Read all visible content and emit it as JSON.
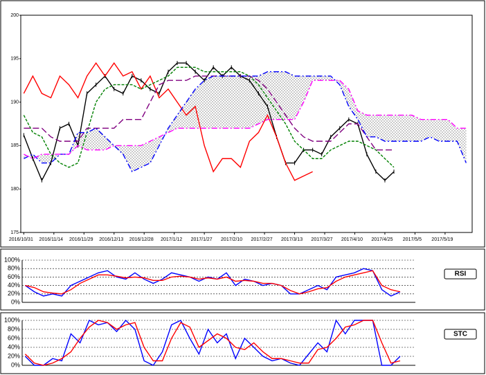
{
  "chart_data": [
    {
      "type": "line",
      "x": [
        0,
        3,
        6,
        9,
        12,
        15,
        18,
        21,
        24,
        27,
        30,
        33,
        36,
        39,
        42,
        45,
        48,
        51,
        54,
        57,
        60,
        63,
        66,
        69,
        72,
        75,
        78,
        81,
        84,
        87,
        90,
        93,
        96,
        99,
        102,
        105,
        108,
        111,
        114,
        117,
        120,
        123,
        126,
        129,
        132,
        135,
        138,
        141,
        144,
        147
      ],
      "xlim": [
        -1,
        149
      ],
      "xticks": [
        {
          "value": 0,
          "label": "2016/10/31"
        },
        {
          "value": 10,
          "label": "2016/11/14"
        },
        {
          "value": 20,
          "label": "2016/11/29"
        },
        {
          "value": 30,
          "label": "2016/12/13"
        },
        {
          "value": 40,
          "label": "2016/12/28"
        },
        {
          "value": 50,
          "label": "2017/1/12"
        },
        {
          "value": 60,
          "label": "2017/1/27"
        },
        {
          "value": 70,
          "label": "2017/2/10"
        },
        {
          "value": 80,
          "label": "2017/2/27"
        },
        {
          "value": 90,
          "label": "2017/3/13"
        },
        {
          "value": 100,
          "label": "2017/3/27"
        },
        {
          "value": 110,
          "label": "2017/4/10"
        },
        {
          "value": 120,
          "label": "2017/4/25"
        },
        {
          "value": 130,
          "label": "2017/5/5"
        },
        {
          "value": 140,
          "label": "2017/5/19"
        }
      ],
      "ylim": [
        175,
        200
      ],
      "yticks": [
        175,
        180,
        185,
        190,
        195,
        200
      ],
      "cloud": [
        4,
        5
      ],
      "series": [
        {
          "color": "#000000",
          "marker": "tick",
          "values": [
            186.2,
            183.5,
            181,
            183,
            187,
            187.5,
            185,
            191,
            192,
            193,
            191.5,
            191,
            193,
            192.5,
            191.5,
            191,
            193.5,
            194.5,
            194.5,
            193.5,
            192.5,
            194,
            193,
            194,
            193,
            192.5,
            191,
            189.5,
            186,
            183,
            183,
            184.5,
            184.5,
            184,
            186,
            187,
            188,
            187.5,
            184,
            182,
            181,
            182,
            null,
            null,
            null,
            null,
            null,
            null,
            null,
            null
          ]
        },
        {
          "color": "#ff0000",
          "values": [
            191,
            193,
            191,
            190.5,
            193,
            192,
            190.5,
            193,
            194.5,
            193,
            194.5,
            193,
            193.5,
            191.5,
            193,
            190.5,
            191.5,
            190,
            188.5,
            189.5,
            185,
            182,
            183.5,
            183.5,
            182.5,
            185.5,
            186.5,
            188.5,
            186,
            183,
            181,
            181.5,
            182,
            null,
            null,
            null,
            null,
            null,
            null,
            null,
            null,
            null,
            null,
            null,
            null,
            null,
            null,
            null,
            null,
            null
          ]
        },
        {
          "color": "#008000",
          "dash": "4,2",
          "values": [
            188.5,
            186.5,
            186,
            184,
            183,
            182.5,
            183,
            186.5,
            190,
            191.5,
            192,
            192,
            192,
            191.5,
            192,
            192.5,
            193,
            194,
            194,
            194,
            193.5,
            193.5,
            193.5,
            193.5,
            193.5,
            193,
            192,
            190.5,
            189,
            187.5,
            185.5,
            184.5,
            183.5,
            183.5,
            184.5,
            185,
            185.5,
            185.5,
            185,
            184.5,
            183.5,
            182.5,
            null,
            null,
            null,
            null,
            null,
            null,
            null,
            null
          ]
        },
        {
          "color": "#800080",
          "dash": "9,4",
          "values": [
            187,
            187,
            187,
            186,
            185.5,
            185.5,
            185.5,
            187,
            187,
            187,
            187,
            188,
            188,
            188,
            190,
            192,
            192.5,
            192.5,
            192.5,
            193,
            193,
            193,
            193,
            193,
            193,
            193,
            192.5,
            191.5,
            190,
            188.5,
            187,
            186,
            185.5,
            185.5,
            185.5,
            186.5,
            187.5,
            187.5,
            186,
            184.5,
            184.5,
            184.5,
            null,
            null,
            null,
            null,
            null,
            null,
            null,
            null
          ]
        },
        {
          "color": "#0000ff",
          "dash": "8,3,2,3",
          "values": [
            183.5,
            184,
            183,
            183,
            184,
            184,
            186.5,
            186.5,
            187,
            186,
            185,
            184,
            182,
            182.5,
            183,
            185,
            187,
            188.5,
            190,
            191.5,
            192.5,
            193,
            193,
            193,
            193,
            193,
            193,
            193.5,
            193.5,
            193.5,
            193,
            193,
            193,
            193,
            193,
            192,
            189.5,
            188,
            186,
            186,
            185.5,
            185.5,
            185.5,
            185.5,
            185.5,
            186,
            185.5,
            185.5,
            185.5,
            183
          ]
        },
        {
          "color": "#ff00ff",
          "dash": "8,3,2,3",
          "values": [
            184,
            183.5,
            184,
            184,
            184,
            184,
            185,
            184.5,
            184.5,
            184.5,
            185,
            185,
            185,
            185,
            185.5,
            186,
            186.5,
            187,
            187,
            187,
            187,
            187,
            187,
            187,
            187,
            187,
            187.5,
            188,
            188,
            188,
            188,
            190,
            192.5,
            192.5,
            192.5,
            192.5,
            191.5,
            189,
            188.5,
            188.5,
            188.5,
            188.5,
            188.5,
            188.5,
            188,
            188,
            188,
            188,
            187,
            187
          ]
        }
      ]
    },
    {
      "type": "line",
      "title": "RSI",
      "x": [
        0,
        3,
        6,
        9,
        12,
        15,
        18,
        21,
        24,
        27,
        30,
        33,
        36,
        39,
        42,
        45,
        48,
        51,
        54,
        57,
        60,
        63,
        66,
        69,
        72,
        75,
        78,
        81,
        84,
        87,
        90,
        93,
        96,
        99,
        102,
        105,
        108,
        111,
        114,
        117,
        120,
        123
      ],
      "xlim": [
        -1,
        128
      ],
      "ylim": [
        0,
        100
      ],
      "yticks": [
        {
          "value": 0,
          "label": "0%"
        },
        {
          "value": 20,
          "label": "20%"
        },
        {
          "value": 40,
          "label": "40%"
        },
        {
          "value": 60,
          "label": "60%"
        },
        {
          "value": 80,
          "label": "80%"
        },
        {
          "value": 100,
          "label": "100%"
        }
      ],
      "grid": true,
      "series": [
        {
          "color": "#0000ff",
          "values": [
            40,
            25,
            15,
            20,
            15,
            40,
            50,
            60,
            70,
            75,
            60,
            55,
            70,
            55,
            45,
            55,
            70,
            65,
            60,
            50,
            60,
            55,
            70,
            40,
            55,
            50,
            40,
            45,
            40,
            20,
            20,
            30,
            40,
            30,
            60,
            65,
            70,
            80,
            75,
            30,
            15,
            25
          ]
        },
        {
          "color": "#ff0000",
          "values": [
            40,
            35,
            25,
            22,
            20,
            30,
            45,
            55,
            65,
            65,
            62,
            58,
            60,
            58,
            52,
            52,
            60,
            62,
            60,
            55,
            58,
            55,
            60,
            50,
            52,
            50,
            45,
            45,
            40,
            28,
            20,
            25,
            32,
            35,
            50,
            60,
            65,
            70,
            75,
            40,
            30,
            25
          ]
        }
      ]
    },
    {
      "type": "line",
      "title": "STC",
      "x": [
        0,
        3,
        6,
        9,
        12,
        15,
        18,
        21,
        24,
        27,
        30,
        33,
        36,
        39,
        42,
        45,
        48,
        51,
        54,
        57,
        60,
        63,
        66,
        69,
        72,
        75,
        78,
        81,
        84,
        87,
        90,
        93,
        96,
        99,
        102,
        105,
        108,
        111,
        114,
        117,
        120,
        123
      ],
      "xlim": [
        -1,
        128
      ],
      "ylim": [
        0,
        100
      ],
      "yticks": [
        {
          "value": 0,
          "label": "0%"
        },
        {
          "value": 20,
          "label": "20%"
        },
        {
          "value": 40,
          "label": "40%"
        },
        {
          "value": 60,
          "label": "60%"
        },
        {
          "value": 80,
          "label": "80%"
        },
        {
          "value": 100,
          "label": "100%"
        }
      ],
      "grid": true,
      "series": [
        {
          "color": "#0000ff",
          "values": [
            20,
            0,
            0,
            15,
            10,
            70,
            50,
            100,
            90,
            95,
            75,
            100,
            80,
            10,
            0,
            30,
            90,
            100,
            60,
            25,
            80,
            50,
            70,
            15,
            60,
            40,
            20,
            10,
            15,
            5,
            0,
            25,
            50,
            30,
            100,
            70,
            100,
            100,
            100,
            0,
            0,
            20
          ]
        },
        {
          "color": "#ff0000",
          "values": [
            25,
            5,
            0,
            5,
            15,
            30,
            60,
            85,
            100,
            95,
            80,
            90,
            95,
            40,
            10,
            10,
            60,
            95,
            85,
            40,
            55,
            70,
            60,
            40,
            35,
            50,
            30,
            15,
            15,
            10,
            5,
            5,
            35,
            40,
            60,
            85,
            90,
            100,
            100,
            50,
            5,
            10
          ]
        }
      ]
    }
  ]
}
